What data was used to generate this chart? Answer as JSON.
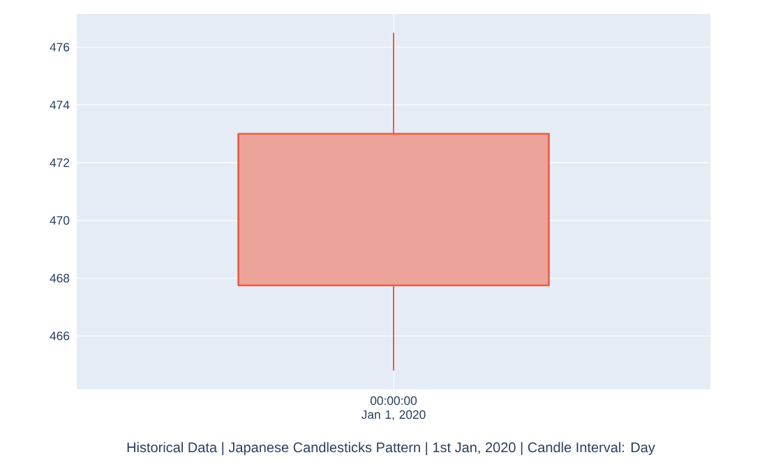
{
  "chart_data": {
    "type": "candlestick",
    "title": "Historical Data | Japanese Candlesticks Pattern | 1st Jan, 2020 | Candle Interval: Day",
    "categories": [
      "00:00:00\nJan 1, 2020"
    ],
    "ohlc": [
      [
        473,
        476.5,
        464.8,
        467.75
      ]
    ],
    "color": "#f25a3f",
    "ylim": [
      464.15,
      477.15
    ],
    "yticks": [
      466,
      468,
      470,
      472,
      474,
      476
    ],
    "grid": true
  }
}
